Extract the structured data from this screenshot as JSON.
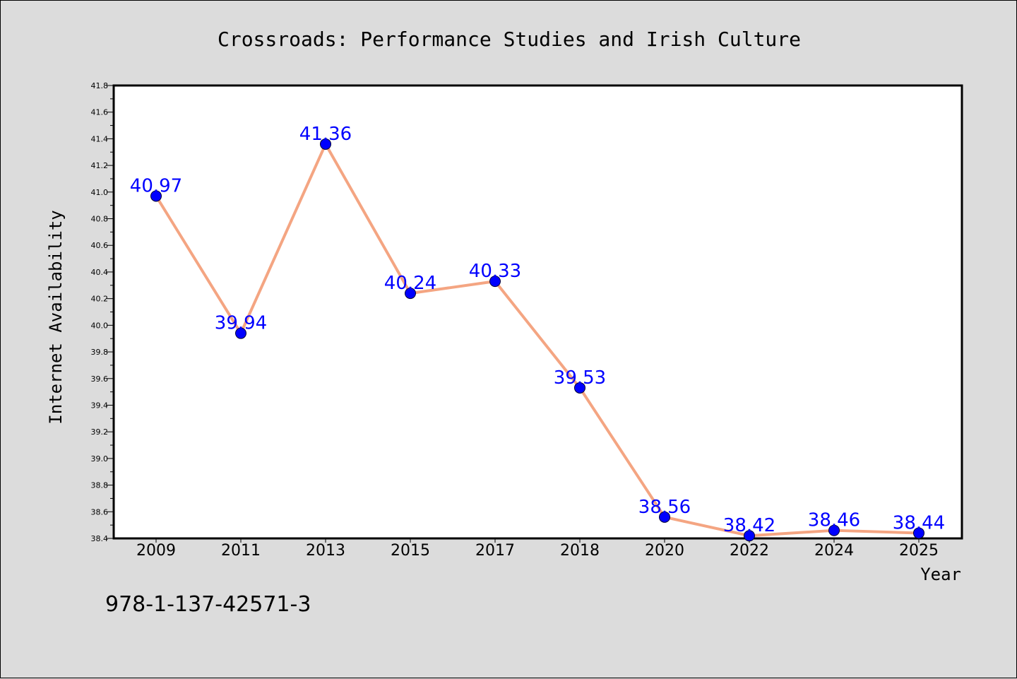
{
  "chart_data": {
    "type": "line",
    "title": "Crossroads: Performance Studies and Irish Culture",
    "xlabel": "Year",
    "ylabel": "Internet Availability",
    "categories": [
      "2009",
      "2011",
      "2013",
      "2015",
      "2017",
      "2018",
      "2020",
      "2022",
      "2024",
      "2025"
    ],
    "values": [
      40.97,
      39.94,
      41.36,
      40.24,
      40.33,
      39.53,
      38.56,
      38.42,
      38.46,
      38.44
    ],
    "data_labels": [
      "40.97",
      "39.94",
      "41.36",
      "40.24",
      "40.33",
      "39.53",
      "38.56",
      "38.42",
      "38.46",
      "38.44"
    ],
    "ylim": [
      38.4,
      41.8
    ],
    "yticks": [
      "38.4",
      "38.6",
      "38.8",
      "39.0",
      "39.2",
      "39.4",
      "39.6",
      "39.8",
      "40.0",
      "40.2",
      "40.4",
      "40.6",
      "40.8",
      "41.0",
      "41.2",
      "41.4",
      "41.6",
      "41.8"
    ],
    "grid": false,
    "legend": "none",
    "line_color": "#f4a582",
    "marker_color": "#0000ff",
    "label_color": "#0000ff"
  },
  "footer": {
    "isbn": "978-1-137-42571-3"
  }
}
